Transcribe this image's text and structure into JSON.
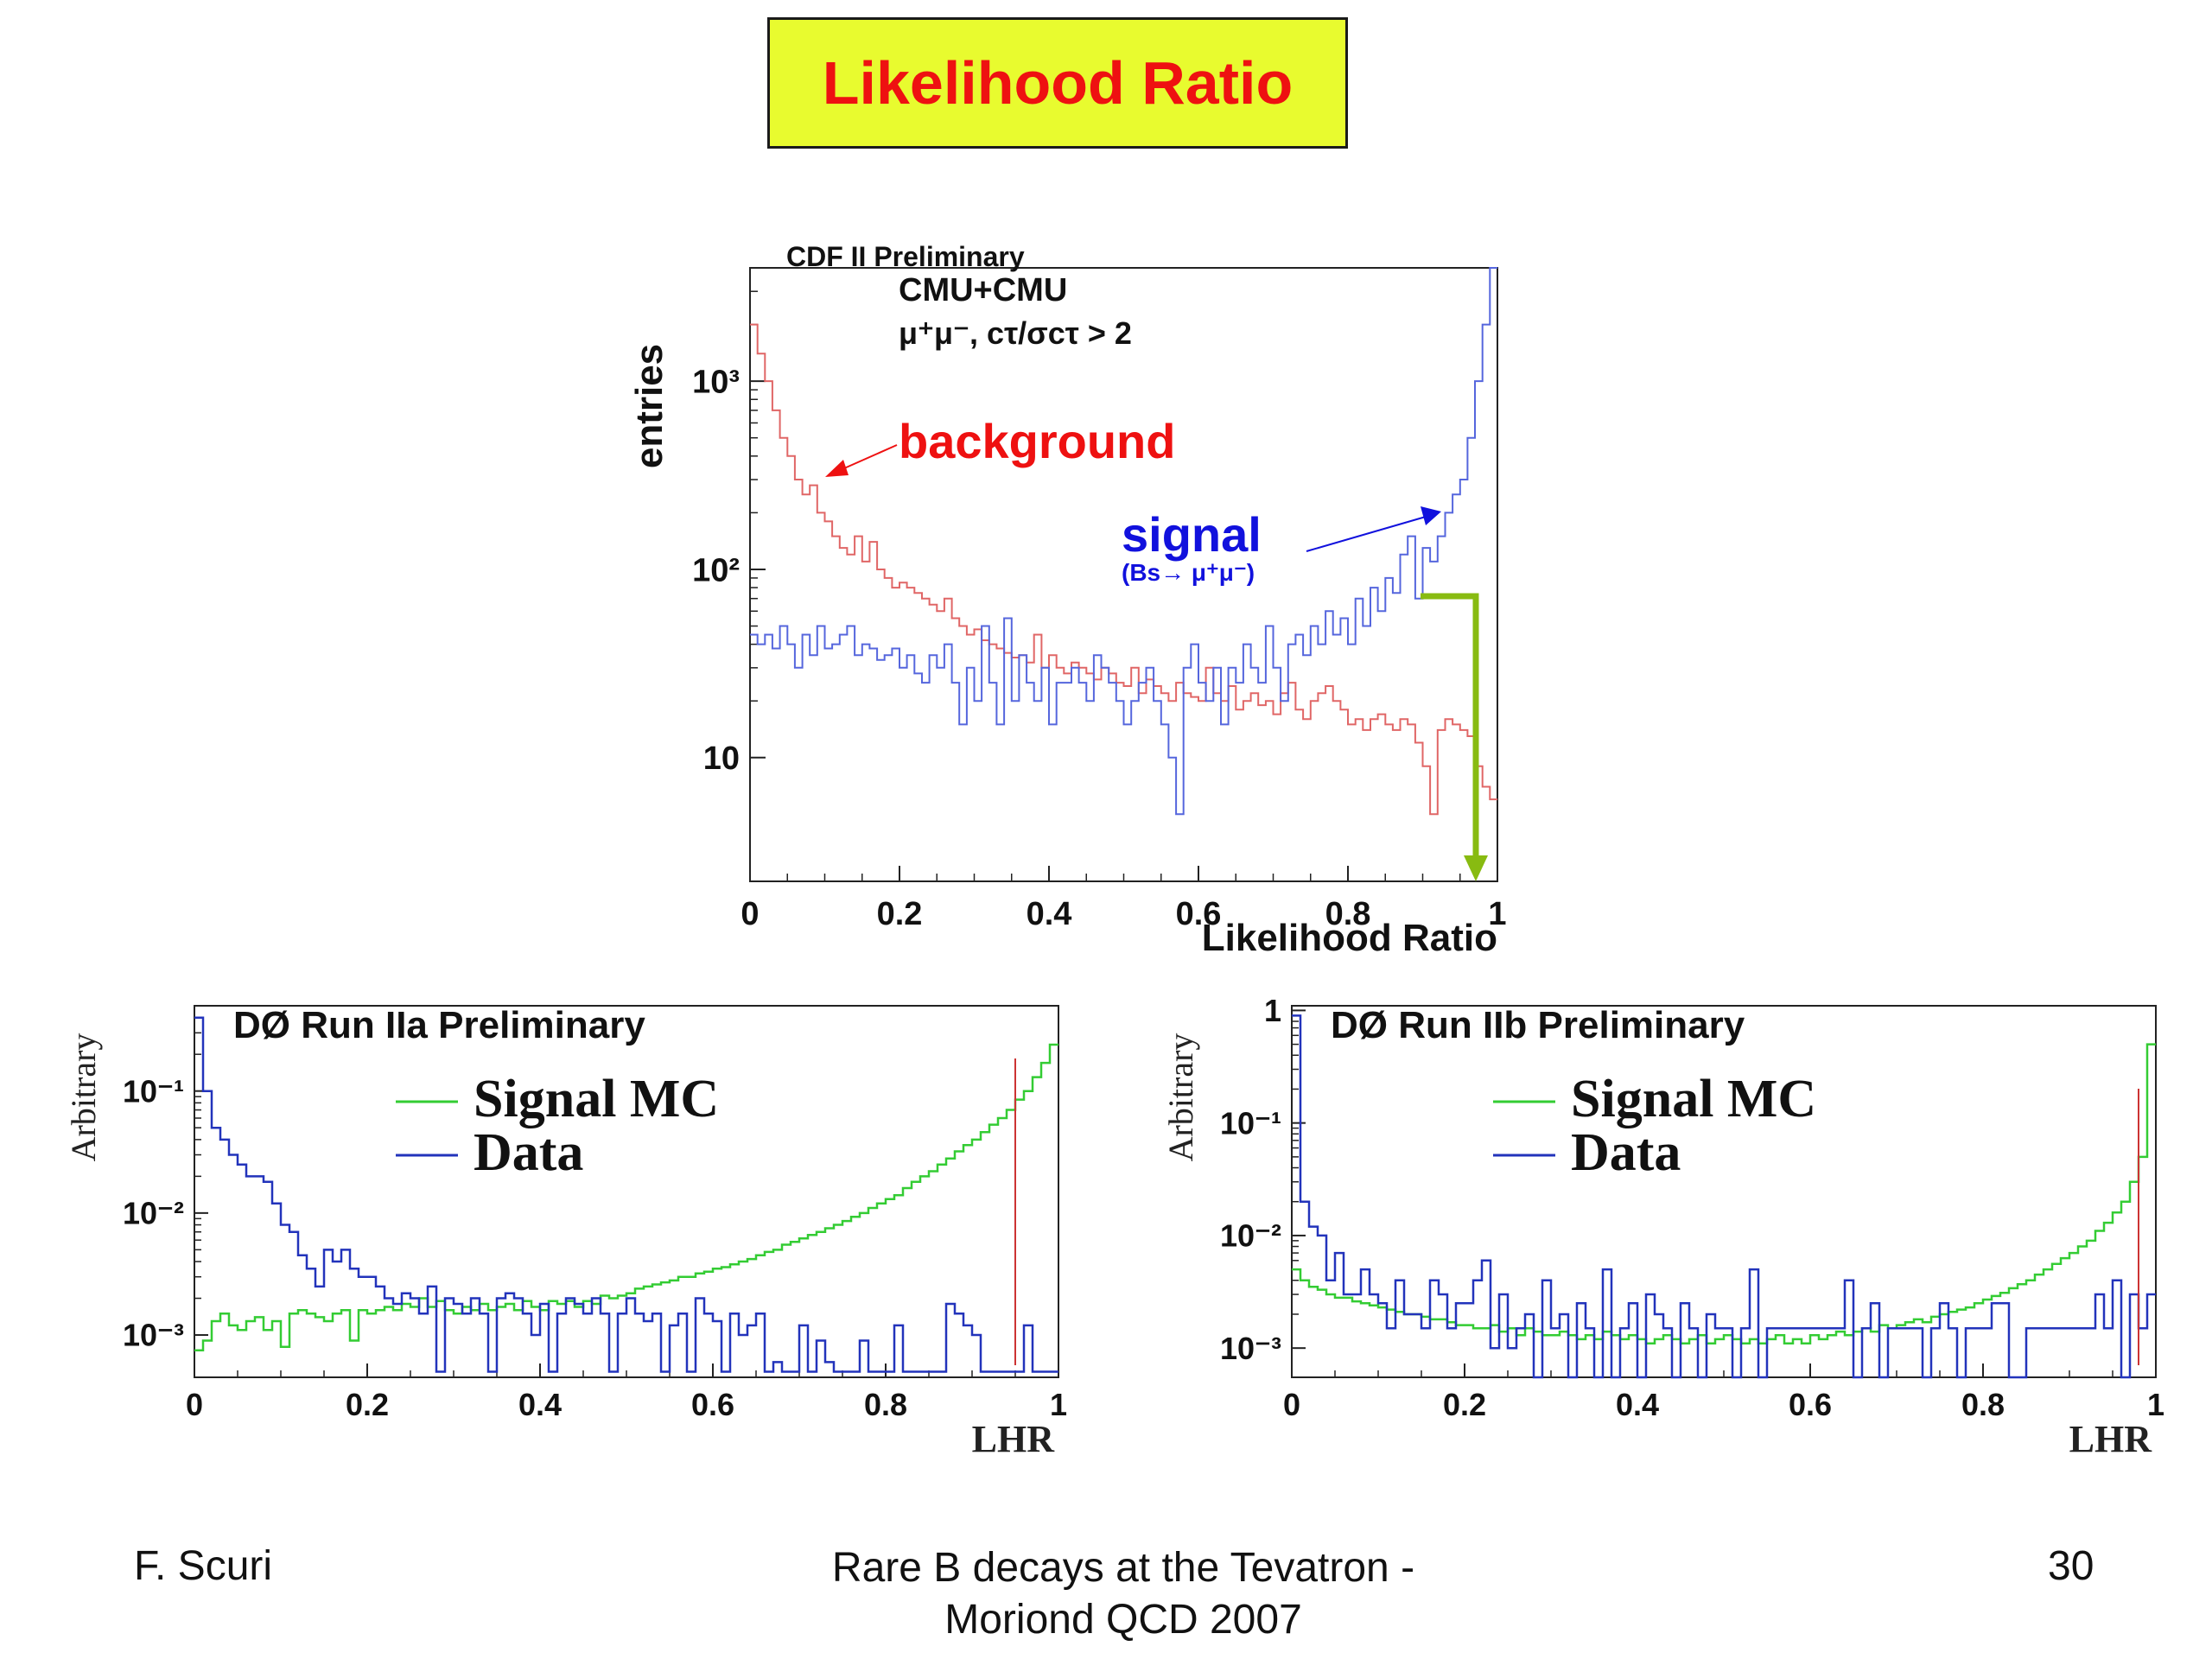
{
  "slide": {
    "title": "Likelihood Ratio",
    "footer_author": "F. Scuri",
    "footer_talk_line1": "Rare B decays at the Tevatron -",
    "footer_talk_line2": "Moriond QCD 2007",
    "page_number": "30",
    "title_bg_color": "#e8fb2f",
    "title_text_color": "#ee1111"
  },
  "chart_data": [
    {
      "type": "line",
      "subtype": "step-histogram",
      "title": "CDF II Preliminary",
      "annotation_line1": "CMU+CMU",
      "annotation_line2": "μ⁺μ⁻,  cτ/σcτ > 2",
      "xlabel": "Likelihood Ratio",
      "ylabel": "entries",
      "xlim": [
        0,
        1
      ],
      "ylim": [
        2.2,
        4000
      ],
      "yscale": "log",
      "x_ticks": [
        "0",
        "0.2",
        "0.4",
        "0.6",
        "0.8",
        "1"
      ],
      "y_ticks": [
        {
          "value": 10,
          "label": "10"
        },
        {
          "value": 100,
          "label": "10²"
        },
        {
          "value": 1000,
          "label": "10³"
        }
      ],
      "background_label": "background",
      "signal_label": "signal",
      "signal_sublabel": "(Bs→ μ⁺μ⁻)",
      "cut_arrow_color": "#88bb11",
      "bins": 100,
      "series": [
        {
          "name": "background",
          "color": "#e06666",
          "values": [
            2000,
            1400,
            1000,
            700,
            500,
            400,
            300,
            250,
            280,
            200,
            180,
            150,
            130,
            120,
            150,
            110,
            140,
            100,
            90,
            80,
            85,
            80,
            75,
            70,
            65,
            60,
            70,
            55,
            50,
            45,
            48,
            42,
            40,
            38,
            36,
            34,
            35,
            32,
            45,
            30,
            35,
            30,
            28,
            32,
            30,
            28,
            26,
            30,
            28,
            25,
            24,
            30,
            22,
            26,
            24,
            22,
            20,
            25,
            22,
            21,
            20,
            30,
            22,
            20,
            24,
            18,
            20,
            22,
            19,
            20,
            17,
            22,
            25,
            18,
            16,
            20,
            22,
            24,
            20,
            18,
            15,
            16,
            14,
            16,
            17,
            15,
            14,
            16,
            15,
            12,
            9,
            5,
            14,
            16,
            15,
            14,
            13,
            9,
            7,
            6
          ]
        },
        {
          "name": "signal",
          "color": "#5566dd",
          "values": [
            45,
            40,
            45,
            38,
            50,
            40,
            30,
            45,
            35,
            50,
            38,
            40,
            45,
            50,
            35,
            40,
            38,
            33,
            35,
            38,
            30,
            35,
            28,
            25,
            35,
            30,
            40,
            25,
            15,
            30,
            20,
            50,
            25,
            15,
            55,
            20,
            35,
            25,
            20,
            30,
            15,
            25,
            25,
            30,
            25,
            20,
            35,
            30,
            25,
            20,
            15,
            20,
            25,
            30,
            20,
            15,
            10,
            5,
            30,
            40,
            25,
            20,
            30,
            15,
            30,
            25,
            40,
            30,
            25,
            50,
            30,
            20,
            40,
            45,
            35,
            50,
            40,
            60,
            45,
            55,
            40,
            70,
            50,
            80,
            60,
            90,
            75,
            120,
            150,
            70,
            130,
            110,
            150,
            200,
            250,
            300,
            500,
            1000,
            2000,
            4000
          ]
        }
      ]
    },
    {
      "type": "line",
      "subtype": "step-histogram",
      "title": "DØ Run IIa Preliminary",
      "xlabel": "LHR",
      "ylabel": "Arbitrary",
      "xlim": [
        0,
        1
      ],
      "ylim": [
        0.00045,
        0.5
      ],
      "yscale": "log",
      "x_ticks": [
        "0",
        "0.2",
        "0.4",
        "0.6",
        "0.8",
        "1"
      ],
      "y_ticks": [
        {
          "value": 0.001,
          "label": "10⁻³"
        },
        {
          "value": 0.01,
          "label": "10⁻²"
        },
        {
          "value": 0.1,
          "label": "10⁻¹"
        }
      ],
      "legend": [
        "Signal MC",
        "Data"
      ],
      "cut_line_x": 0.95,
      "bins": 100,
      "series": [
        {
          "name": "Signal MC",
          "color": "#33cc33",
          "values": [
            0.00075,
            0.0009,
            0.0013,
            0.0015,
            0.0012,
            0.0011,
            0.0013,
            0.0014,
            0.0011,
            0.0013,
            0.0008,
            0.0015,
            0.0016,
            0.0015,
            0.0014,
            0.0013,
            0.0015,
            0.0016,
            0.0009,
            0.0016,
            0.0015,
            0.0016,
            0.0017,
            0.0016,
            0.0018,
            0.0017,
            0.002,
            0.0017,
            0.0019,
            0.0016,
            0.0015,
            0.0017,
            0.0016,
            0.0018,
            0.0016,
            0.0017,
            0.0018,
            0.0016,
            0.0019,
            0.0017,
            0.0016,
            0.0019,
            0.0018,
            0.0019,
            0.0017,
            0.0019,
            0.0018,
            0.0021,
            0.002,
            0.0021,
            0.0022,
            0.0024,
            0.0025,
            0.0026,
            0.0027,
            0.0028,
            0.003,
            0.003,
            0.0032,
            0.0033,
            0.0035,
            0.0036,
            0.0038,
            0.004,
            0.0042,
            0.0045,
            0.0048,
            0.005,
            0.0055,
            0.0058,
            0.0062,
            0.0066,
            0.007,
            0.0075,
            0.008,
            0.0086,
            0.0093,
            0.01,
            0.011,
            0.012,
            0.013,
            0.014,
            0.016,
            0.018,
            0.02,
            0.022,
            0.025,
            0.028,
            0.032,
            0.036,
            0.04,
            0.046,
            0.053,
            0.06,
            0.07,
            0.085,
            0.1,
            0.13,
            0.17,
            0.24
          ]
        },
        {
          "name": "Data",
          "color": "#2233bb",
          "values": [
            0.4,
            0.1,
            0.05,
            0.04,
            0.03,
            0.025,
            0.02,
            0.02,
            0.018,
            0.012,
            0.008,
            0.007,
            0.0045,
            0.0035,
            0.0025,
            0.005,
            0.004,
            0.005,
            0.0035,
            0.003,
            0.003,
            0.0025,
            0.002,
            0.0018,
            0.0022,
            0.002,
            0.0015,
            0.0025,
            0.0005,
            0.002,
            0.0018,
            0.0015,
            0.002,
            0.0015,
            0.0005,
            0.002,
            0.0022,
            0.002,
            0.0015,
            0.001,
            0.0018,
            0.0005,
            0.0015,
            0.002,
            0.0018,
            0.0015,
            0.002,
            0.0015,
            0.0005,
            0.0015,
            0.002,
            0.0015,
            0.0013,
            0.0015,
            0.0005,
            0.0012,
            0.0015,
            0.0005,
            0.002,
            0.0015,
            0.0013,
            0.0005,
            0.0015,
            0.001,
            0.0012,
            0.0015,
            0.0005,
            0.0006,
            0.0005,
            0.0005,
            0.0012,
            0.0005,
            0.0009,
            0.0006,
            0.0005,
            0.0005,
            0.0005,
            0.0009,
            0.0005,
            0.0005,
            0.0005,
            0.0012,
            0.0005,
            0.0005,
            0.0005,
            0.0005,
            0.0005,
            0.0018,
            0.0015,
            0.0012,
            0.001,
            0.0005,
            0.0005,
            0.0005,
            0.0005,
            0.0005,
            0.0012,
            0.0005,
            0.0005,
            0.0005
          ]
        }
      ]
    },
    {
      "type": "line",
      "subtype": "step-histogram",
      "title": "DØ Run IIb Preliminary",
      "xlabel": "LHR",
      "ylabel": "Arbitrary",
      "xlim": [
        0,
        1
      ],
      "ylim": [
        0.00055,
        1.1
      ],
      "yscale": "log",
      "x_ticks": [
        "0",
        "0.2",
        "0.4",
        "0.6",
        "0.8",
        "1"
      ],
      "y_ticks": [
        {
          "value": 0.001,
          "label": "10⁻³"
        },
        {
          "value": 0.01,
          "label": "10⁻²"
        },
        {
          "value": 0.1,
          "label": "10⁻¹"
        },
        {
          "value": 1,
          "label": "1"
        }
      ],
      "legend": [
        "Signal MC",
        "Data"
      ],
      "cut_line_x": 0.98,
      "bins": 100,
      "series": [
        {
          "name": "Signal MC",
          "color": "#33cc33",
          "values": [
            0.005,
            0.004,
            0.0035,
            0.0033,
            0.003,
            0.0028,
            0.0028,
            0.0026,
            0.0025,
            0.0024,
            0.0023,
            0.0022,
            0.0021,
            0.002,
            0.002,
            0.0019,
            0.0018,
            0.0018,
            0.0017,
            0.0016,
            0.0016,
            0.0015,
            0.0015,
            0.0016,
            0.0014,
            0.0015,
            0.0013,
            0.0015,
            0.0014,
            0.0013,
            0.0013,
            0.0014,
            0.0013,
            0.0012,
            0.0013,
            0.0012,
            0.0014,
            0.0013,
            0.0012,
            0.0013,
            0.0012,
            0.0011,
            0.0012,
            0.0013,
            0.0012,
            0.0011,
            0.0012,
            0.0013,
            0.0011,
            0.0012,
            0.0013,
            0.0012,
            0.0011,
            0.0012,
            0.0011,
            0.0012,
            0.0013,
            0.0011,
            0.0012,
            0.0011,
            0.0013,
            0.0012,
            0.0013,
            0.0014,
            0.0013,
            0.0014,
            0.0015,
            0.0014,
            0.0016,
            0.0015,
            0.0016,
            0.0017,
            0.0018,
            0.0017,
            0.0019,
            0.002,
            0.0021,
            0.0022,
            0.0023,
            0.0025,
            0.0027,
            0.0029,
            0.0031,
            0.0034,
            0.0037,
            0.004,
            0.0045,
            0.005,
            0.0056,
            0.0063,
            0.007,
            0.008,
            0.009,
            0.011,
            0.013,
            0.016,
            0.02,
            0.03,
            0.05,
            0.5
          ]
        },
        {
          "name": "Data",
          "color": "#2233bb",
          "values": [
            0.9,
            0.02,
            0.012,
            0.01,
            0.004,
            0.007,
            0.003,
            0.003,
            0.005,
            0.003,
            0.0025,
            0.0015,
            0.004,
            0.002,
            0.002,
            0.0015,
            0.004,
            0.003,
            0.0015,
            0.0025,
            0.0025,
            0.004,
            0.006,
            0.001,
            0.003,
            0.001,
            0.0015,
            0.002,
            0.0005,
            0.004,
            0.0015,
            0.002,
            0.0005,
            0.0025,
            0.0015,
            0.0005,
            0.005,
            0.0005,
            0.0015,
            0.0025,
            0.0005,
            0.003,
            0.002,
            0.0015,
            0.0005,
            0.0025,
            0.0015,
            0.0005,
            0.002,
            0.0015,
            0.0015,
            0.0005,
            0.0015,
            0.005,
            0.0005,
            0.0015,
            0.0015,
            0.0015,
            0.0015,
            0.0015,
            0.0015,
            0.0015,
            0.0015,
            0.0015,
            0.004,
            0.0005,
            0.0015,
            0.0025,
            0.0005,
            0.0015,
            0.0015,
            0.0015,
            0.0015,
            0.0005,
            0.0015,
            0.0025,
            0.0015,
            0.0005,
            0.0015,
            0.0015,
            0.0015,
            0.0025,
            0.0025,
            0.0005,
            0.0005,
            0.0015,
            0.0015,
            0.0015,
            0.0015,
            0.0015,
            0.0015,
            0.0015,
            0.0015,
            0.003,
            0.0015,
            0.004,
            0.0005,
            0.003,
            0.0015,
            0.003
          ]
        }
      ]
    }
  ]
}
